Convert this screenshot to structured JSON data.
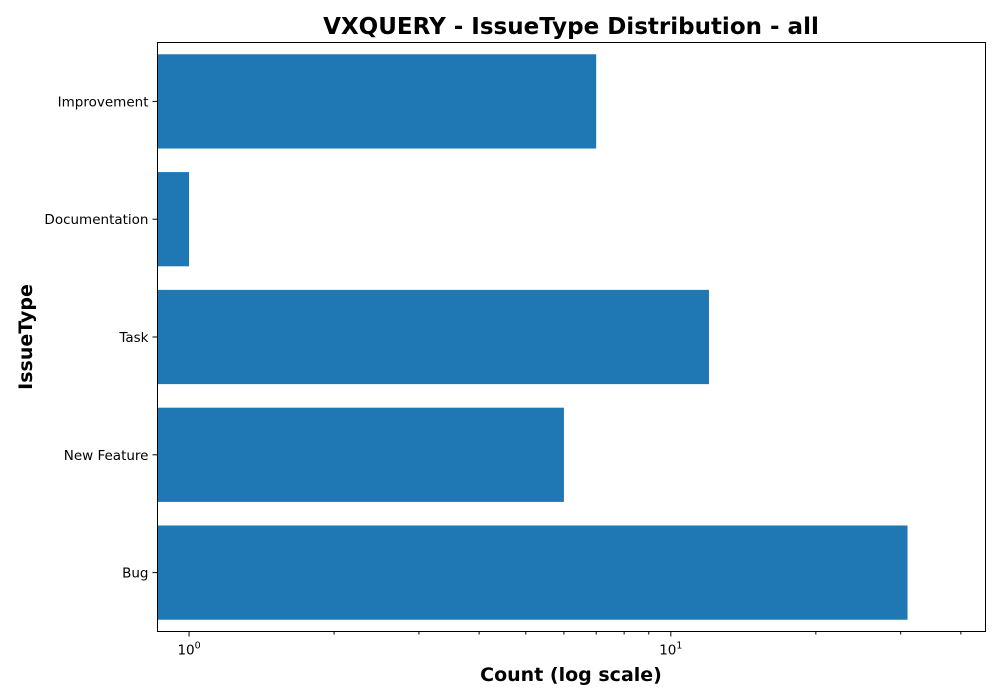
{
  "chart_data": {
    "type": "bar",
    "orientation": "horizontal",
    "title": "VXQUERY - IssueType Distribution - all",
    "xlabel": "Count (log scale)",
    "ylabel": "IssueType",
    "x_scale": "log",
    "xlim": [
      0.86,
      45
    ],
    "categories": [
      "Improvement",
      "Documentation",
      "Task",
      "New Feature",
      "Bug"
    ],
    "values": [
      7,
      1,
      12,
      6,
      31
    ],
    "major_ticks": [
      {
        "value": 1,
        "base": "10",
        "exp": "0"
      },
      {
        "value": 10,
        "base": "10",
        "exp": "1"
      }
    ],
    "minor_ticks": [
      2,
      3,
      4,
      5,
      6,
      7,
      8,
      9,
      20,
      30,
      40
    ],
    "bar_color": "#1f77b4",
    "grid": false,
    "legend": "none"
  }
}
